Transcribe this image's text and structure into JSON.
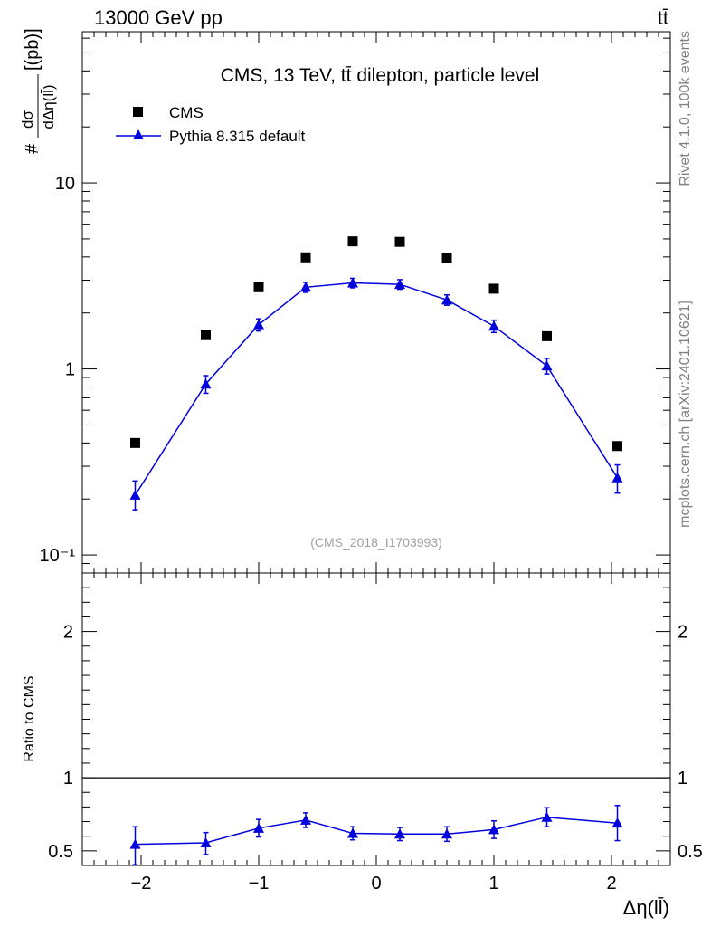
{
  "header": {
    "left": "13000 GeV pp",
    "right": "tt̄"
  },
  "side_texts": {
    "rivet": "Rivet 4.1.0,  100k events",
    "mcplots": "mcplots.cern.ch [arXiv:2401.10621]"
  },
  "watermark": "(CMS_2018_I1703993)",
  "colors": {
    "data": "#000000",
    "mc": "#0000dd",
    "axis": "#000000",
    "watermark": "#a0a0a0",
    "side_text": "#808080"
  },
  "chart_data": [
    {
      "type": "scatter",
      "title": "CMS, 13 TeV, tt̄ dilepton, particle level",
      "ylabel": "#dσ/dΔη(ll̄)[(pb)]",
      "yscale": "log",
      "xlim": [
        -2.5,
        2.5
      ],
      "ylim": [
        0.08,
        65
      ],
      "y_tick_labels": [
        "10⁻¹",
        "1",
        "10"
      ],
      "x": [
        -2.05,
        -1.45,
        -1.0,
        -0.6,
        -0.2,
        0.2,
        0.6,
        1.0,
        1.45,
        2.05
      ],
      "legend": [
        "CMS",
        "Pythia 8.315 default"
      ],
      "series": [
        {
          "name": "CMS",
          "marker": "square",
          "values": [
            0.4,
            1.52,
            2.75,
            3.98,
            4.85,
            4.82,
            3.95,
            2.7,
            1.5,
            0.385
          ]
        },
        {
          "name": "Pythia 8.315 default",
          "marker": "triangle",
          "line": true,
          "values": [
            0.21,
            0.83,
            1.73,
            2.75,
            2.9,
            2.85,
            2.35,
            1.7,
            1.04,
            0.26
          ],
          "err_low": [
            0.035,
            0.09,
            0.13,
            0.17,
            0.17,
            0.17,
            0.15,
            0.13,
            0.1,
            0.045
          ],
          "err_high": [
            0.04,
            0.09,
            0.13,
            0.17,
            0.17,
            0.17,
            0.15,
            0.13,
            0.1,
            0.045
          ]
        }
      ]
    },
    {
      "type": "line",
      "title": "",
      "xlabel": "Δη(ll̄)",
      "ylabel": "Ratio to CMS",
      "xlim": [
        -2.5,
        2.5
      ],
      "ylim": [
        0.4,
        2.4
      ],
      "x_tick_labels": [
        "−2",
        "−1",
        "0",
        "1",
        "2"
      ],
      "y_tick_labels": [
        "0.5",
        "1",
        "2"
      ],
      "reference_line": 1,
      "x": [
        -2.05,
        -1.45,
        -1.0,
        -0.6,
        -0.2,
        0.2,
        0.6,
        1.0,
        1.45,
        2.05
      ],
      "series": [
        {
          "name": "Pythia 8.315 default / CMS",
          "marker": "triangle",
          "values": [
            0.545,
            0.555,
            0.655,
            0.71,
            0.62,
            0.615,
            0.615,
            0.645,
            0.73,
            0.69
          ],
          "err_low": [
            0.14,
            0.08,
            0.06,
            0.05,
            0.045,
            0.045,
            0.05,
            0.06,
            0.065,
            0.12
          ],
          "err_high": [
            0.12,
            0.07,
            0.06,
            0.05,
            0.045,
            0.045,
            0.05,
            0.06,
            0.065,
            0.12
          ]
        }
      ]
    }
  ]
}
